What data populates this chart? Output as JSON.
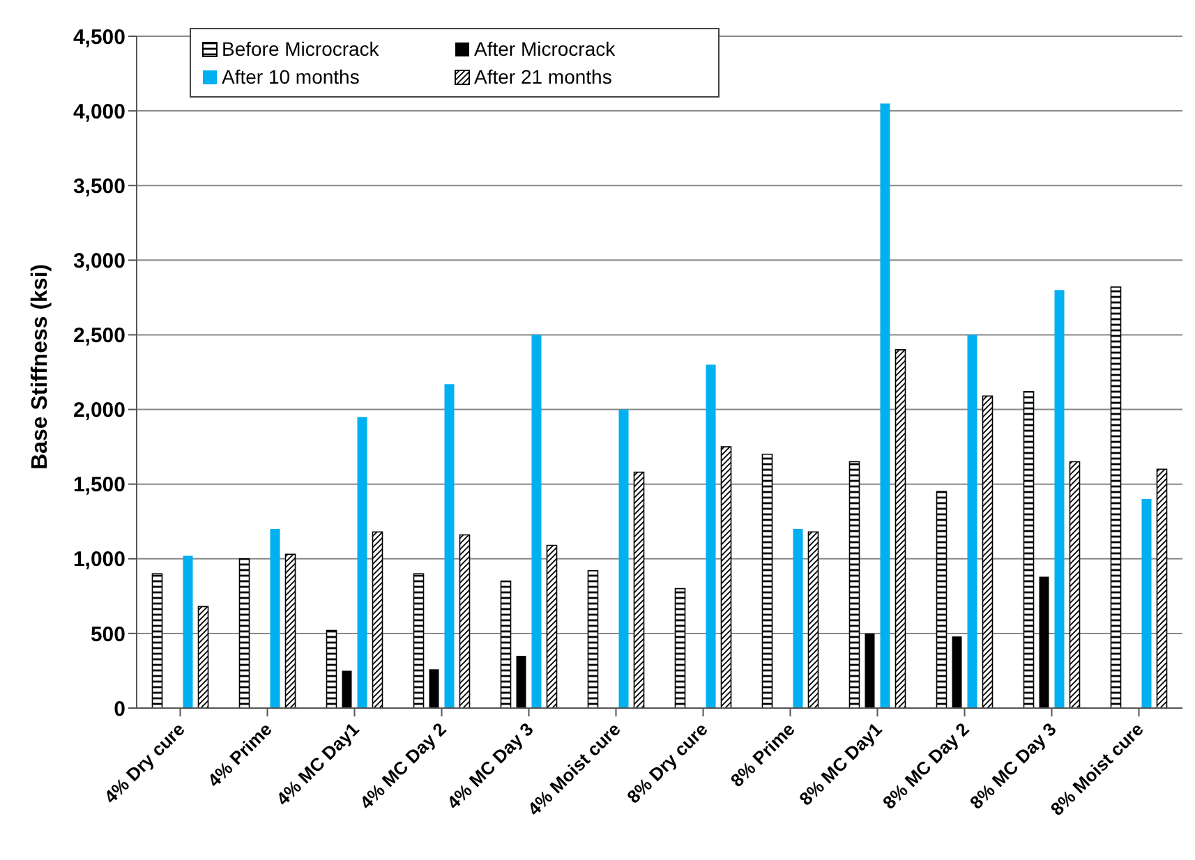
{
  "chart_data": {
    "type": "bar",
    "ylabel": "Base Stiffness (ksi)",
    "categories": [
      "4% Dry cure",
      "4% Prime",
      "4% MC Day1",
      "4% MC Day 2",
      "4% MC Day 3",
      "4% Moist cure",
      "8% Dry cure",
      "8% Prime",
      "8% MC Day1",
      "8% MC Day 2",
      "8% MC Day 3",
      "8% Moist cure"
    ],
    "series": [
      {
        "name": "Before Microcrack",
        "color": "#000000",
        "values": [
          900,
          1000,
          520,
          900,
          850,
          920,
          800,
          1700,
          1650,
          1450,
          2120,
          2820
        ]
      },
      {
        "name": "After Microcrack",
        "color": "#000000",
        "values": [
          null,
          null,
          250,
          260,
          350,
          null,
          null,
          null,
          500,
          480,
          880,
          null
        ]
      },
      {
        "name": "After 10 months",
        "color": "#00b0f0",
        "values": [
          1020,
          1200,
          1950,
          2170,
          2500,
          2000,
          2300,
          1200,
          4050,
          2500,
          2800,
          1400
        ]
      },
      {
        "name": "After 21 months",
        "color": "#000000",
        "values": [
          680,
          1030,
          1180,
          1160,
          1090,
          1580,
          1750,
          1180,
          2400,
          2090,
          1650,
          1600
        ]
      }
    ],
    "ylim": [
      0,
      4500
    ],
    "yticks": [
      {
        "value": 0,
        "label": "0"
      },
      {
        "value": 500,
        "label": "500"
      },
      {
        "value": 1000,
        "label": "1,000"
      },
      {
        "value": 1500,
        "label": "1,500"
      },
      {
        "value": 2000,
        "label": "2,000"
      },
      {
        "value": 2500,
        "label": "2,500"
      },
      {
        "value": 3000,
        "label": "3,000"
      },
      {
        "value": 3500,
        "label": "3,500"
      },
      {
        "value": 4000,
        "label": "4,000"
      },
      {
        "value": 4500,
        "label": "4,500"
      }
    ],
    "grid": "y",
    "legend": "top left"
  }
}
